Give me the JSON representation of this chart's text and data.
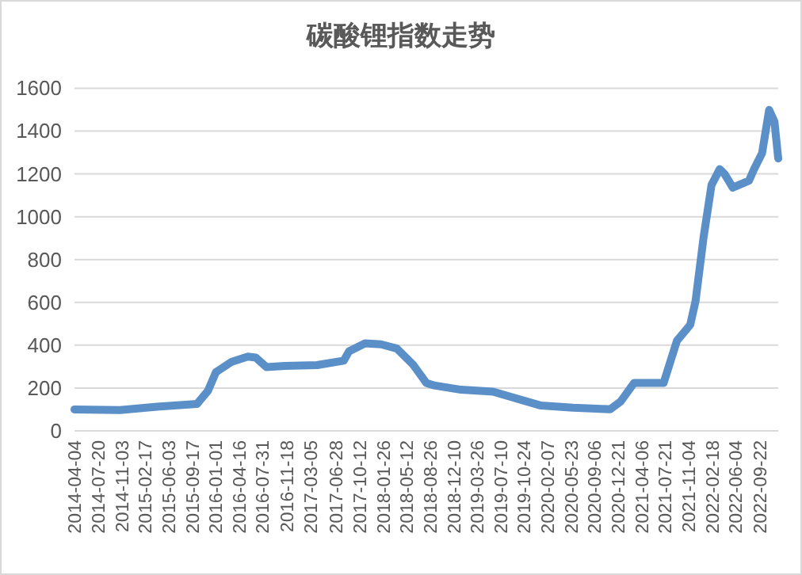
{
  "chart_data": {
    "type": "line",
    "title": "碳酸锂指数走势",
    "x": [
      "2014-04-04",
      "2014-10-26",
      "2015-04-12",
      "2015-10-09",
      "2015-11-27",
      "2016-01-02",
      "2016-03-14",
      "2016-05-25",
      "2016-06-30",
      "2016-08-17",
      "2016-11-09",
      "2017-04-02",
      "2017-08-01",
      "2017-08-25",
      "2017-11-05",
      "2018-01-16",
      "2018-03-29",
      "2018-06-09",
      "2018-08-08",
      "2018-09-13",
      "2019-01-12",
      "2019-06-05",
      "2019-07-24",
      "2020-01-08",
      "2020-05-31",
      "2020-11-15",
      "2021-01-02",
      "2021-03-03",
      "2021-07-14",
      "2021-09-12",
      "2021-11-11",
      "2021-12-05",
      "2022-01-10",
      "2022-02-15",
      "2022-03-24",
      "2022-04-16",
      "2022-05-22",
      "2022-08-03",
      "2022-08-26",
      "2022-10-01",
      "2022-11-02",
      "2022-11-26",
      "2022-12-13"
    ],
    "series": [
      {
        "color": "#5b8fc7",
        "values": [
          100,
          97,
          113,
          126,
          187,
          274,
          323,
          347,
          342,
          298,
          303,
          307,
          328,
          372,
          409,
          404,
          384,
          310,
          224,
          212,
          192,
          183,
          168,
          118,
          108,
          101,
          138,
          224,
          224,
          421,
          495,
          606,
          902,
          1148,
          1222,
          1198,
          1136,
          1168,
          1222,
          1296,
          1499,
          1444,
          1272
        ]
      }
    ],
    "xlim": [
      "2014-04-04",
      "2022-12-13"
    ],
    "xticks": [
      "2014-04-04",
      "2014-07-20",
      "2014-11-03",
      "2015-02-17",
      "2015-06-03",
      "2015-09-17",
      "2016-01-01",
      "2016-04-16",
      "2016-07-31",
      "2016-11-18",
      "2017-03-05",
      "2017-06-28",
      "2017-10-12",
      "2018-01-26",
      "2018-05-12",
      "2018-08-26",
      "2018-12-10",
      "2019-03-26",
      "2019-07-10",
      "2019-10-24",
      "2020-02-07",
      "2020-05-23",
      "2020-09-06",
      "2020-12-21",
      "2021-04-06",
      "2021-07-21",
      "2021-11-04",
      "2022-02-18",
      "2022-06-04",
      "2022-09-22"
    ],
    "ylim": [
      0,
      1600
    ],
    "yticks": [
      0,
      200,
      400,
      600,
      800,
      1000,
      1200,
      1400,
      1600
    ],
    "grid": "y",
    "line_style": "solid"
  }
}
